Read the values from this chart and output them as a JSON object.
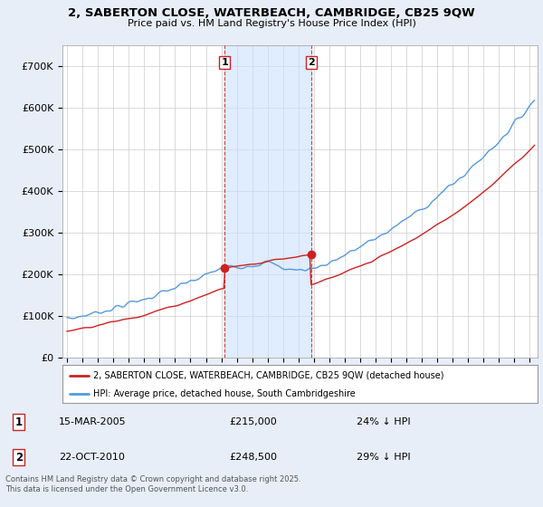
{
  "title_line1": "2, SABERTON CLOSE, WATERBEACH, CAMBRIDGE, CB25 9QW",
  "title_line2": "Price paid vs. HM Land Registry's House Price Index (HPI)",
  "background_color": "#e8eef8",
  "plot_bg_color": "#ffffff",
  "ylim": [
    0,
    750000
  ],
  "yticks": [
    0,
    100000,
    200000,
    300000,
    400000,
    500000,
    600000,
    700000
  ],
  "ytick_labels": [
    "£0",
    "£100K",
    "£200K",
    "£300K",
    "£400K",
    "£500K",
    "£600K",
    "£700K"
  ],
  "hpi_color": "#5599dd",
  "price_color": "#cc2222",
  "sale1_date": "15-MAR-2005",
  "sale1_price": 215000,
  "sale1_pct": "24% ↓ HPI",
  "sale2_date": "22-OCT-2010",
  "sale2_price": 248500,
  "sale2_pct": "29% ↓ HPI",
  "legend_label_price": "2, SABERTON CLOSE, WATERBEACH, CAMBRIDGE, CB25 9QW (detached house)",
  "legend_label_hpi": "HPI: Average price, detached house, South Cambridgeshire",
  "footer": "Contains HM Land Registry data © Crown copyright and database right 2025.\nThis data is licensed under the Open Government Licence v3.0.",
  "sale1_x": 2005.21,
  "sale2_x": 2010.81,
  "xlim_left": 1994.7,
  "xlim_right": 2025.5
}
